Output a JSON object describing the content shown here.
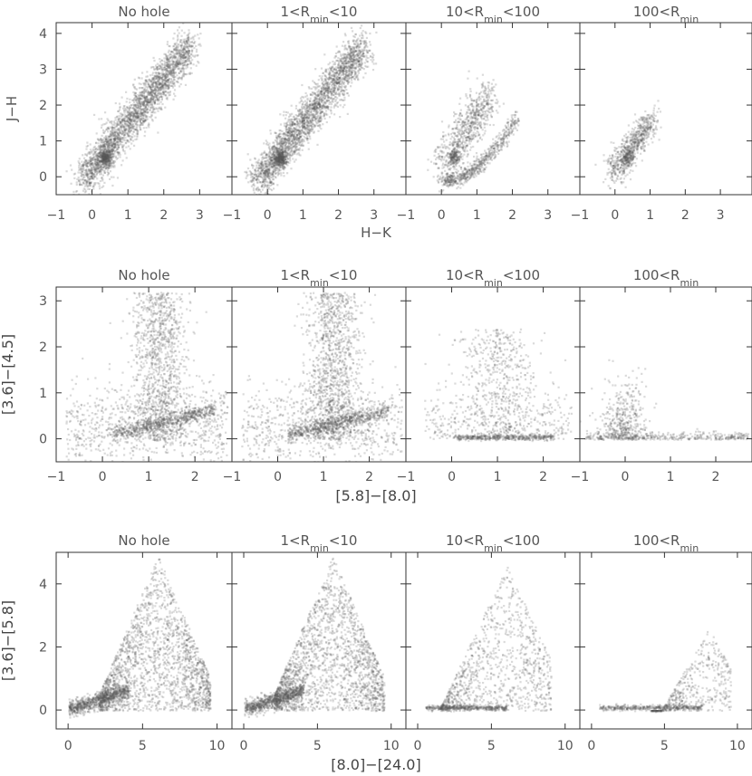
{
  "chart_data": [
    {
      "type": "scatter",
      "row": 1,
      "panel_titles": [
        "No hole",
        "1<Rₘᵢₙ<10",
        "10<Rₘᵢₙ<100",
        "100<Rₘᵢₙ"
      ],
      "panel_titles_parts": [
        {
          "pre": "No hole",
          "sub": "",
          "post": ""
        },
        {
          "pre": "1<R",
          "sub": "min",
          "post": "<10"
        },
        {
          "pre": "10<R",
          "sub": "min",
          "post": "<100"
        },
        {
          "pre": "100<R",
          "sub": "min",
          "post": ""
        }
      ],
      "xlabel": "H−K",
      "ylabel": "J−H",
      "xlim": [
        -1,
        3.9
      ],
      "ylim": [
        -0.5,
        4.3
      ],
      "xticks": [
        -1,
        0,
        1,
        2,
        3
      ],
      "xtick_labels": [
        "−1",
        "0",
        "1",
        "2",
        "3"
      ],
      "yticks": [
        0,
        1,
        2,
        3,
        4
      ],
      "ytick_labels": [
        "0",
        "1",
        "2",
        "3",
        "4"
      ],
      "panels": [
        {
          "description": "dense diagonal band",
          "band": [
            [
              -0.3,
              -0.1
            ],
            [
              0.3,
              0.5
            ],
            [
              1.2,
              1.6
            ],
            [
              2.0,
              2.7
            ],
            [
              2.7,
              3.7
            ]
          ],
          "core": [
            0.4,
            0.6
          ]
        },
        {
          "description": "dense diagonal band",
          "band": [
            [
              -0.3,
              -0.1
            ],
            [
              0.3,
              0.5
            ],
            [
              1.2,
              1.6
            ],
            [
              2.0,
              2.7
            ],
            [
              2.7,
              3.7
            ]
          ],
          "core": [
            0.4,
            0.6
          ]
        },
        {
          "description": "cloud plus lower arc",
          "band": [
            [
              0.0,
              0.3
            ],
            [
              0.5,
              1.3
            ],
            [
              1.0,
              2.3
            ]
          ],
          "arc": [
            [
              0.0,
              -0.1
            ],
            [
              1.0,
              0.3
            ],
            [
              1.8,
              1.0
            ],
            [
              2.0,
              1.7
            ]
          ],
          "core": [
            0.3,
            0.5
          ]
        },
        {
          "description": "compact cloud",
          "band": [
            [
              -0.1,
              0.1
            ],
            [
              0.5,
              0.8
            ],
            [
              0.9,
              1.5
            ]
          ],
          "core": [
            0.3,
            0.5
          ]
        }
      ]
    },
    {
      "type": "scatter",
      "row": 2,
      "panel_titles_parts": [
        {
          "pre": "No hole",
          "sub": "",
          "post": ""
        },
        {
          "pre": "1<R",
          "sub": "min",
          "post": "<10"
        },
        {
          "pre": "10<R",
          "sub": "min",
          "post": "<100"
        },
        {
          "pre": "100<R",
          "sub": "min",
          "post": ""
        }
      ],
      "xlabel": "[5.8]−[8.0]",
      "ylabel": "[3.6]−[4.5]",
      "xlim": [
        -1,
        2.8
      ],
      "ylim": [
        -0.5,
        3.3
      ],
      "xticks": [
        -1,
        0,
        1,
        2
      ],
      "xtick_labels": [
        "−1",
        "0",
        "1",
        "2"
      ],
      "yticks": [
        0,
        1,
        2,
        3
      ],
      "ytick_labels": [
        "0",
        "1",
        "2",
        "3"
      ],
      "panels": [
        {
          "description": "vertical plume near x=1.2 with horizontal band at y~0.1",
          "plume_x": 1.2,
          "band_y": 0.1
        },
        {
          "description": "vertical plume near x=1.2 with horizontal band at y~0.1",
          "plume_x": 1.2,
          "band_y": 0.1
        },
        {
          "description": "sparser plume near x=1, line at y~0.05",
          "plume_x": 1.0,
          "band_y": 0.05
        },
        {
          "description": "clump near x=0, line at y~0",
          "plume_x": 0.0,
          "band_y": 0.0
        }
      ]
    },
    {
      "type": "scatter",
      "row": 3,
      "panel_titles_parts": [
        {
          "pre": "No hole",
          "sub": "",
          "post": ""
        },
        {
          "pre": "1<R",
          "sub": "min",
          "post": "<10"
        },
        {
          "pre": "10<R",
          "sub": "min",
          "post": "<100"
        },
        {
          "pre": "100<R",
          "sub": "min",
          "post": ""
        }
      ],
      "xlabel": "[8.0]−[24.0]",
      "ylabel": "[3.6]−[5.8]",
      "xlim": [
        -0.8,
        11
      ],
      "ylim": [
        -0.6,
        5
      ],
      "xticks": [
        0,
        5,
        10
      ],
      "xtick_labels": [
        "0",
        "5",
        "10"
      ],
      "yticks": [
        0,
        2,
        4
      ],
      "ytick_labels": [
        "0",
        "2",
        "4"
      ],
      "panels": [
        {
          "description": "broad triangle peaking near x=6, dense tail at low x",
          "peak_x": 6,
          "peak_y": 4.8
        },
        {
          "description": "broad triangle peaking near x=6, dense tail at low x",
          "peak_x": 6,
          "peak_y": 4.8
        },
        {
          "description": "sparser triangle peaking near x=6, line at y~0.1",
          "peak_x": 6,
          "peak_y": 4.6
        },
        {
          "description": "small wedge toward x=8, line at y~0.1",
          "peak_x": 8,
          "peak_y": 2.6
        }
      ]
    }
  ]
}
